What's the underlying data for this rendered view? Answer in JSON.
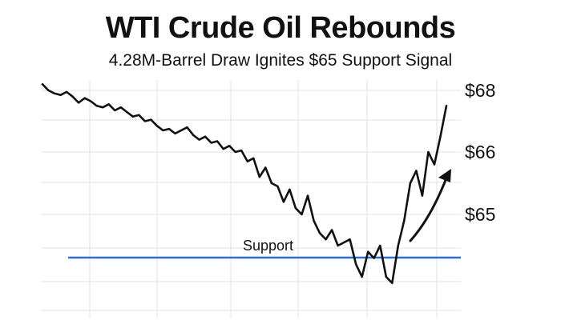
{
  "chart_data": {
    "type": "line",
    "title": "WTI Crude Oil Rebounds",
    "subtitle": "4.28M-Barrel Draw Ignites $65 Support Signal",
    "y_ticks": [
      {
        "value": 68,
        "label": "$68"
      },
      {
        "value": 66,
        "label": "$66"
      },
      {
        "value": 65,
        "label": "$65"
      }
    ],
    "support": {
      "label": "Support",
      "color": "#2f6fcf"
    },
    "line_color": "#111111",
    "grid": true,
    "series": [
      {
        "values": [
          68.2,
          68.0,
          67.9,
          67.85,
          67.95,
          67.8,
          67.6,
          67.75,
          67.65,
          67.5,
          67.45,
          67.55,
          67.35,
          67.45,
          67.3,
          67.15,
          67.2,
          67.0,
          67.05,
          66.85,
          66.7,
          66.75,
          66.6,
          66.7,
          66.8,
          66.55,
          66.4,
          66.5,
          66.3,
          66.35,
          66.1,
          66.2,
          66.0,
          66.05,
          65.85,
          65.9,
          65.6,
          65.75,
          65.5,
          65.45,
          65.2,
          65.4,
          65.1,
          65.0,
          65.3,
          64.9,
          64.7,
          64.6,
          64.75,
          64.5,
          64.55,
          64.6,
          64.2,
          64.0,
          64.4,
          64.3,
          64.5,
          64.0,
          63.9,
          64.5,
          64.9,
          65.5,
          65.7,
          65.3,
          66.0,
          65.8,
          66.5,
          67.5
        ]
      }
    ]
  }
}
